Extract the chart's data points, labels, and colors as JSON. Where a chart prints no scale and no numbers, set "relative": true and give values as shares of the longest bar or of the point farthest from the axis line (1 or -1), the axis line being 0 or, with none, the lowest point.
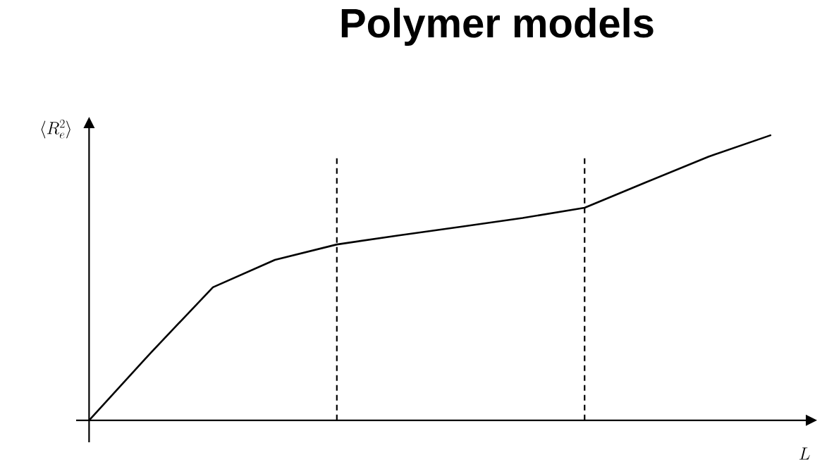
{
  "chart_data": {
    "type": "line",
    "title": "Polymer models",
    "xlabel": "L",
    "ylabel": "\\langle R_e^2\\rangle",
    "relative": true,
    "categories": [
      null,
      null,
      null,
      null,
      null,
      null,
      null,
      null,
      null,
      null,
      null,
      null
    ],
    "series": [
      {
        "color": "#000000",
        "values": [
          0,
          0.238,
          0.467,
          0.563,
          0.617,
          0.649,
          0.679,
          0.71,
          0.746,
          0.836,
          0.925,
          1
        ]
      }
    ]
  }
}
